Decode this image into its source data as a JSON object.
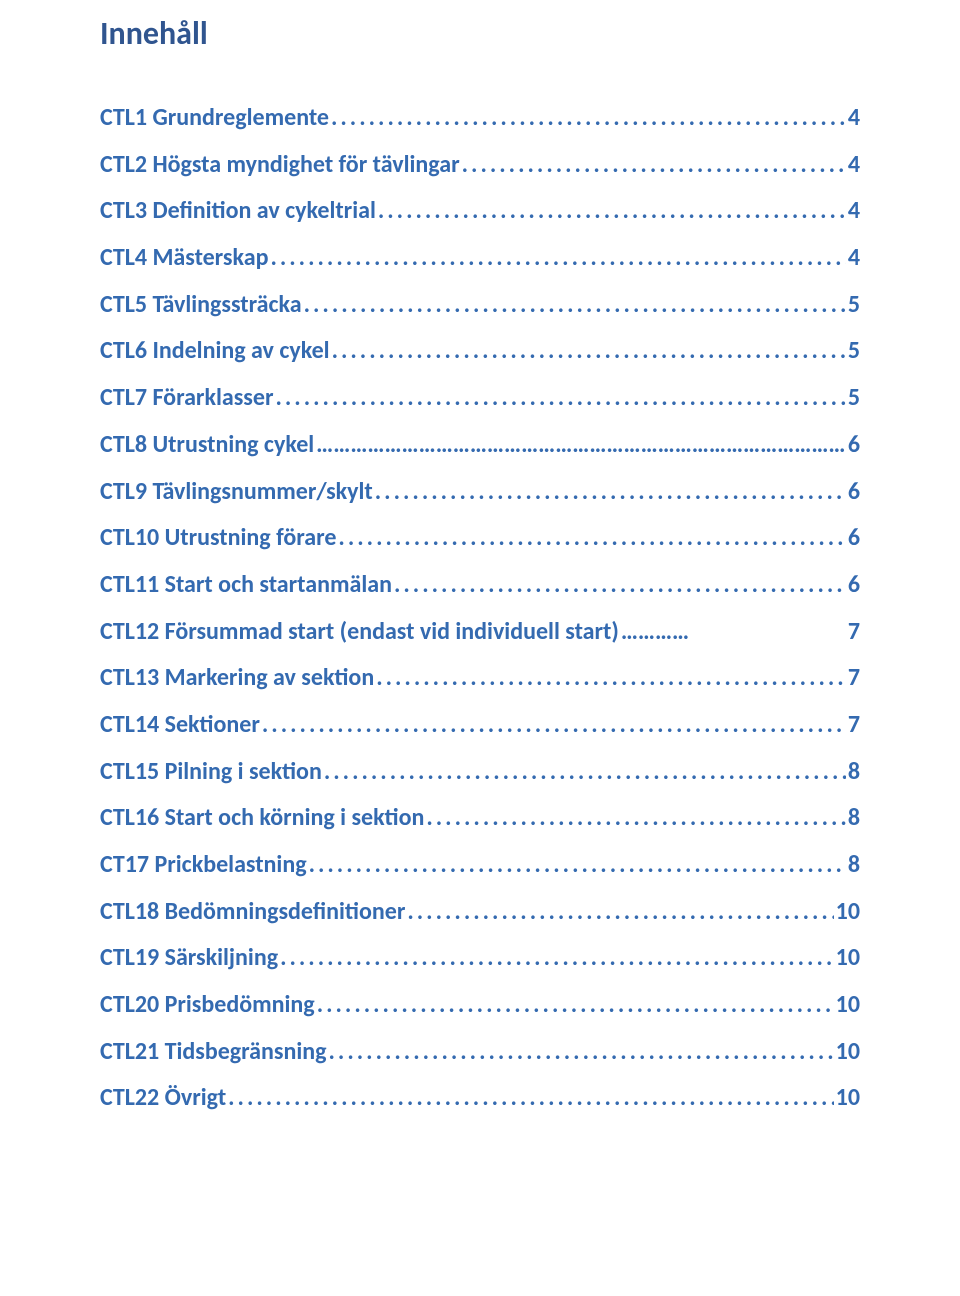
{
  "heading": {
    "text": "Innehåll",
    "color": "#30558f",
    "fontsize": 32
  },
  "toc": {
    "link_color": "#346ab0",
    "label_fontsize": 24,
    "row_height": 46.7,
    "entries": [
      {
        "label": "CTL1 Grundreglemente",
        "page": "4"
      },
      {
        "label": "CTL2 Högsta myndighet för tävlingar",
        "page": "4"
      },
      {
        "label": "CTL3 Definition av cykeltrial",
        "page": "4"
      },
      {
        "label": "CTL4 Mästerskap",
        "page": "4"
      },
      {
        "label": "CTL5 Tävlingssträcka",
        "page": "5"
      },
      {
        "label": "CTL6 Indelning av cykel",
        "page": "5"
      },
      {
        "label": "CTL7 Förarklasser",
        "page": "5"
      },
      {
        "label": "CTL8 Utrustning cykel",
        "page": "6",
        "leader_style": "ellipsis"
      },
      {
        "label": "CTL9 Tävlingsnummer/skylt",
        "page": "6"
      },
      {
        "label": "CTL10 Utrustning förare",
        "page": "6"
      },
      {
        "label": "CTL11 Start och startanmälan",
        "page": "6"
      },
      {
        "label": "CTL12 Försummad start (endast vid individuell start)",
        "page": "7",
        "leader_style": "ellipsis_short"
      },
      {
        "label": "CTL13 Markering av sektion",
        "page": "7"
      },
      {
        "label": "CTL14 Sektioner",
        "page": "7"
      },
      {
        "label": "CTL15 Pilning i sektion",
        "page": "8"
      },
      {
        "label": "CTL16 Start och körning i sektion",
        "page": "8"
      },
      {
        "label": "CT17 Prickbelastning",
        "page": "8"
      },
      {
        "label": "CTL18 Bedömningsdefinitioner",
        "page": "10"
      },
      {
        "label": "CTL19 Särskiljning",
        "page": "10"
      },
      {
        "label": "CTL20 Prisbedömning",
        "page": "10"
      },
      {
        "label": "CTL21 Tidsbegränsning",
        "page": "10"
      },
      {
        "label": "CTL22 Övrigt",
        "page": "10"
      }
    ]
  }
}
